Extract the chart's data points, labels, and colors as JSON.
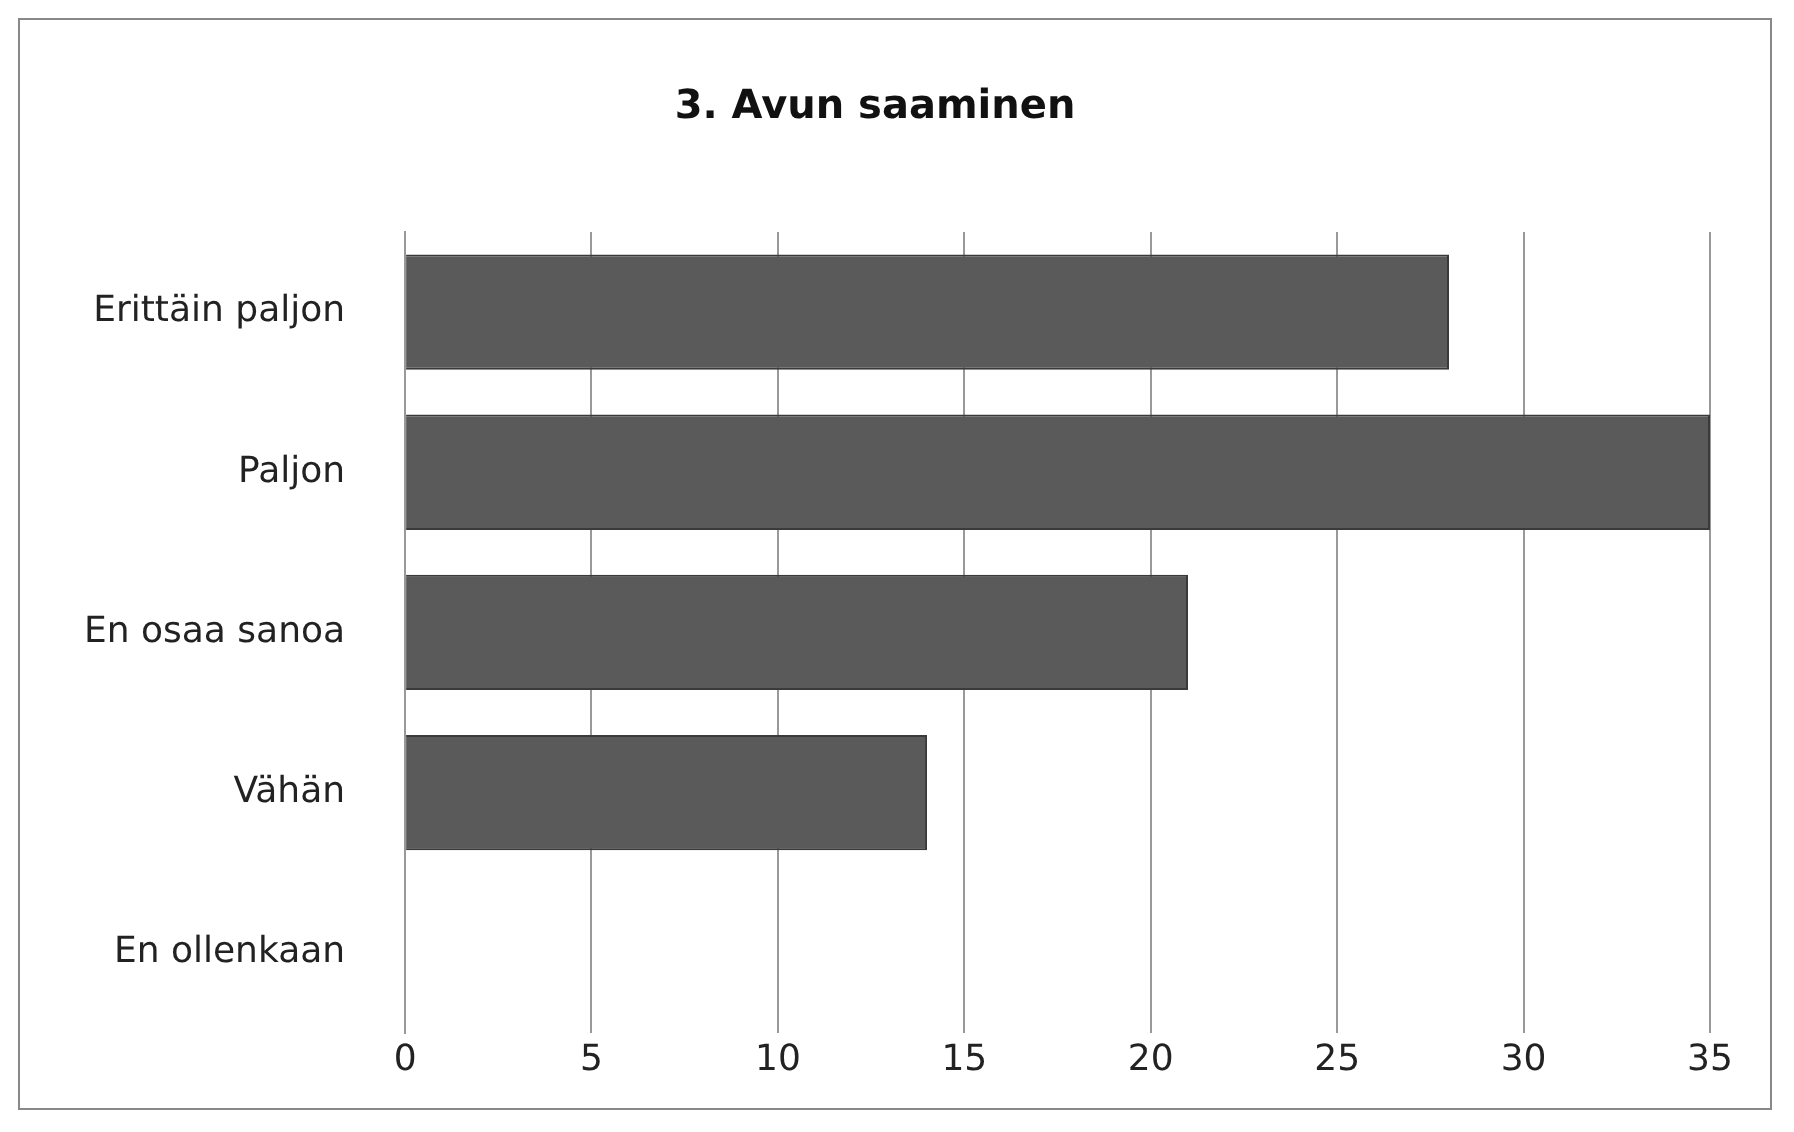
{
  "chart_data": {
    "type": "bar",
    "orientation": "horizontal",
    "title": "3. Avun saaminen",
    "categories": [
      "Erittäin paljon",
      "Paljon",
      "En osaa sanoa",
      "Vähän",
      "En ollenkaan"
    ],
    "values": [
      28,
      35,
      21,
      14,
      0
    ],
    "color": "#5a5a5a",
    "xlim": [
      0,
      35
    ],
    "xticks": [
      0,
      5,
      10,
      15,
      20,
      25,
      30,
      35
    ],
    "grid": "x",
    "legend": false
  }
}
